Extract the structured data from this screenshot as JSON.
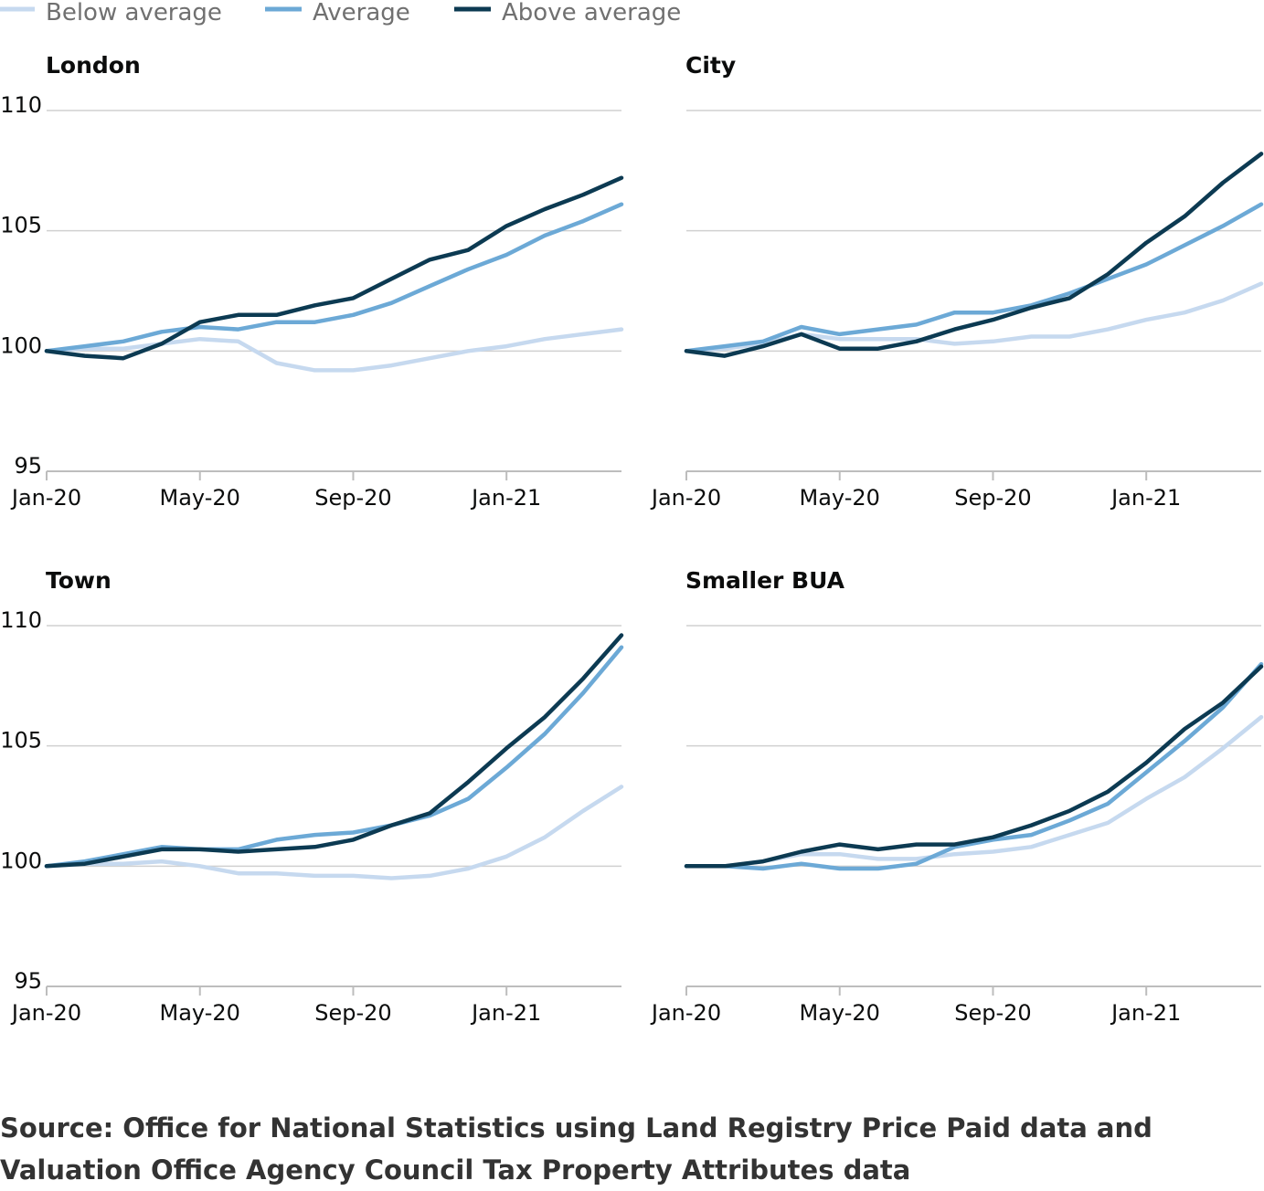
{
  "chart_data": [
    {
      "type": "line",
      "title": "London",
      "x": [
        "Jan-20",
        "Feb-20",
        "Mar-20",
        "Apr-20",
        "May-20",
        "Jun-20",
        "Jul-20",
        "Aug-20",
        "Sep-20",
        "Oct-20",
        "Nov-20",
        "Dec-20",
        "Jan-21",
        "Feb-21",
        "Mar-21",
        "Apr-21"
      ],
      "xticks": [
        "Jan-20",
        "May-20",
        "Sep-20",
        "Jan-21"
      ],
      "yticks": [
        95,
        100,
        105,
        110
      ],
      "ylim": [
        95,
        110
      ],
      "series": [
        {
          "name": "Below average",
          "values": [
            100,
            100.1,
            100.1,
            100.3,
            100.5,
            100.4,
            99.5,
            99.2,
            99.2,
            99.4,
            99.7,
            100,
            100.2,
            100.5,
            100.7,
            100.9
          ]
        },
        {
          "name": "Average",
          "values": [
            100,
            100.2,
            100.4,
            100.8,
            101,
            100.9,
            101.2,
            101.2,
            101.5,
            102,
            102.7,
            103.4,
            104,
            104.8,
            105.4,
            106.1
          ]
        },
        {
          "name": "Above average",
          "values": [
            100,
            99.8,
            99.7,
            100.3,
            101.2,
            101.5,
            101.5,
            101.9,
            102.2,
            103,
            103.8,
            104.2,
            105.2,
            105.9,
            106.5,
            107.2
          ]
        }
      ]
    },
    {
      "type": "line",
      "title": "City",
      "x": [
        "Jan-20",
        "Feb-20",
        "Mar-20",
        "Apr-20",
        "May-20",
        "Jun-20",
        "Jul-20",
        "Aug-20",
        "Sep-20",
        "Oct-20",
        "Nov-20",
        "Dec-20",
        "Jan-21",
        "Feb-21",
        "Mar-21",
        "Apr-21"
      ],
      "xticks": [
        "Jan-20",
        "May-20",
        "Sep-20",
        "Jan-21"
      ],
      "yticks": [
        95,
        100,
        105,
        110
      ],
      "ylim": [
        95,
        110
      ],
      "series": [
        {
          "name": "Below average",
          "values": [
            100,
            100.1,
            100.3,
            100.7,
            100.5,
            100.5,
            100.5,
            100.3,
            100.4,
            100.6,
            100.6,
            100.9,
            101.3,
            101.6,
            102.1,
            102.8
          ]
        },
        {
          "name": "Average",
          "values": [
            100,
            100.2,
            100.4,
            101,
            100.7,
            100.9,
            101.1,
            101.6,
            101.6,
            101.9,
            102.4,
            103,
            103.6,
            104.4,
            105.2,
            106.1
          ]
        },
        {
          "name": "Above average",
          "values": [
            100,
            99.8,
            100.2,
            100.7,
            100.1,
            100.1,
            100.4,
            100.9,
            101.3,
            101.8,
            102.2,
            103.2,
            104.5,
            105.6,
            107,
            108.2
          ]
        }
      ]
    },
    {
      "type": "line",
      "title": "Town",
      "x": [
        "Jan-20",
        "Feb-20",
        "Mar-20",
        "Apr-20",
        "May-20",
        "Jun-20",
        "Jul-20",
        "Aug-20",
        "Sep-20",
        "Oct-20",
        "Nov-20",
        "Dec-20",
        "Jan-21",
        "Feb-21",
        "Mar-21",
        "Apr-21"
      ],
      "xticks": [
        "Jan-20",
        "May-20",
        "Sep-20",
        "Jan-21"
      ],
      "yticks": [
        95,
        100,
        105,
        110
      ],
      "ylim": [
        95,
        110
      ],
      "series": [
        {
          "name": "Below average",
          "values": [
            100,
            100.1,
            100.1,
            100.2,
            100,
            99.7,
            99.7,
            99.6,
            99.6,
            99.5,
            99.6,
            99.9,
            100.4,
            101.2,
            102.3,
            103.3
          ]
        },
        {
          "name": "Average",
          "values": [
            100,
            100.2,
            100.5,
            100.8,
            100.7,
            100.7,
            101.1,
            101.3,
            101.4,
            101.7,
            102.1,
            102.8,
            104.1,
            105.5,
            107.2,
            109.1
          ]
        },
        {
          "name": "Above average",
          "values": [
            100,
            100.1,
            100.4,
            100.7,
            100.7,
            100.6,
            100.7,
            100.8,
            101.1,
            101.7,
            102.2,
            103.5,
            104.9,
            106.2,
            107.8,
            109.6
          ]
        }
      ]
    },
    {
      "type": "line",
      "title": "Smaller BUA",
      "x": [
        "Jan-20",
        "Feb-20",
        "Mar-20",
        "Apr-20",
        "May-20",
        "Jun-20",
        "Jul-20",
        "Aug-20",
        "Sep-20",
        "Oct-20",
        "Nov-20",
        "Dec-20",
        "Jan-21",
        "Feb-21",
        "Mar-21",
        "Apr-21"
      ],
      "xticks": [
        "Jan-20",
        "May-20",
        "Sep-20",
        "Jan-21"
      ],
      "yticks": [
        95,
        100,
        105,
        110
      ],
      "ylim": [
        95,
        110
      ],
      "series": [
        {
          "name": "Below average",
          "values": [
            100,
            100,
            100.2,
            100.5,
            100.5,
            100.3,
            100.3,
            100.5,
            100.6,
            100.8,
            101.3,
            101.8,
            102.8,
            103.7,
            104.9,
            106.2
          ]
        },
        {
          "name": "Average",
          "values": [
            100,
            100,
            99.9,
            100.1,
            99.9,
            99.9,
            100.1,
            100.8,
            101.1,
            101.3,
            101.9,
            102.6,
            103.9,
            105.2,
            106.6,
            108.4
          ]
        },
        {
          "name": "Above average",
          "values": [
            100,
            100,
            100.2,
            100.6,
            100.9,
            100.7,
            100.9,
            100.9,
            101.2,
            101.7,
            102.3,
            103.1,
            104.3,
            105.7,
            106.8,
            108.3
          ]
        }
      ]
    }
  ],
  "legend": {
    "placement": "top-left",
    "entries": [
      {
        "name": "Below average",
        "color": "#c6d9ef"
      },
      {
        "name": "Average",
        "color": "#6ca9d6"
      },
      {
        "name": "Above average",
        "color": "#0c3a52"
      }
    ]
  },
  "source": "Source: Office for National Statistics using Land Registry Price Paid data and Valuation Office Agency Council Tax Property Attributes data"
}
